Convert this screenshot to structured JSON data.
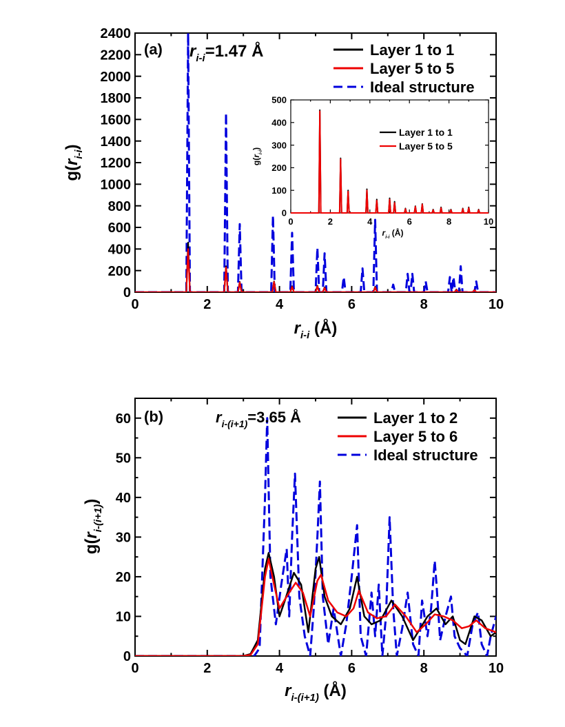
{
  "chart_data": [
    {
      "type": "line",
      "panel_label": "(a)",
      "annotation": {
        "prefix": "r",
        "sub": "i-i",
        "suffix": "=1.47 Å"
      },
      "xlabel": {
        "prefix": "r",
        "sub": "i-i",
        "suffix": " (Å)"
      },
      "ylabel": {
        "prefix": "g(r",
        "sub": "i-i",
        "suffix": ")"
      },
      "xlim": [
        0,
        10
      ],
      "ylim": [
        0,
        2400
      ],
      "xticks": [
        "0",
        "2",
        "4",
        "6",
        "8",
        "10"
      ],
      "yticks": [
        "0",
        "200",
        "400",
        "600",
        "800",
        "1000",
        "1200",
        "1400",
        "1600",
        "1800",
        "2000",
        "2200",
        "2400"
      ],
      "legend_position": "top-right",
      "colors": {
        "layer_a": "#000000",
        "layer_b": "#ee0000",
        "ideal": "#0000dd"
      },
      "series": [
        {
          "name": "Layer 1 to 1",
          "color": "#000000",
          "style": "solid",
          "peaks": [
            [
              1.47,
              460
            ],
            [
              2.52,
              240
            ],
            [
              2.9,
              95
            ],
            [
              3.85,
              100
            ],
            [
              4.35,
              55
            ],
            [
              5.05,
              60
            ],
            [
              5.25,
              45
            ],
            [
              6.65,
              50
            ],
            [
              8.9,
              25
            ],
            [
              9.4,
              20
            ]
          ]
        },
        {
          "name": "Layer 5 to 5",
          "color": "#ee0000",
          "style": "solid",
          "peaks": [
            [
              1.47,
              400
            ],
            [
              2.52,
              230
            ],
            [
              2.9,
              90
            ],
            [
              3.85,
              95
            ],
            [
              4.35,
              50
            ],
            [
              5.05,
              55
            ],
            [
              5.25,
              40
            ],
            [
              6.65,
              45
            ],
            [
              8.9,
              22
            ],
            [
              9.4,
              18
            ]
          ]
        },
        {
          "name": "Ideal structure",
          "color": "#0000dd",
          "style": "dashed",
          "peaks": [
            [
              1.47,
              2400
            ],
            [
              2.52,
              1660
            ],
            [
              2.9,
              630
            ],
            [
              3.82,
              710
            ],
            [
              4.35,
              550
            ],
            [
              5.05,
              410
            ],
            [
              5.25,
              360
            ],
            [
              5.78,
              140
            ],
            [
              6.3,
              220
            ],
            [
              6.65,
              670
            ],
            [
              7.15,
              70
            ],
            [
              7.55,
              170
            ],
            [
              7.68,
              170
            ],
            [
              8.05,
              100
            ],
            [
              8.72,
              140
            ],
            [
              8.82,
              140
            ],
            [
              9.02,
              240
            ],
            [
              9.45,
              100
            ]
          ]
        }
      ],
      "inset": {
        "xlabel": {
          "prefix": "r",
          "sub": "i-i",
          "suffix": " (Å)"
        },
        "ylabel": {
          "prefix": "g(r",
          "sub": "i-i",
          "suffix": ")"
        },
        "xlim": [
          0,
          10
        ],
        "ylim": [
          0,
          500
        ],
        "xticks": [
          "0",
          "2",
          "4",
          "6",
          "8",
          "10"
        ],
        "yticks": [
          "0",
          "100",
          "200",
          "300",
          "400",
          "500"
        ],
        "series": [
          {
            "name": "Layer 1 to 1",
            "color": "#000000",
            "peaks": [
              [
                1.47,
                455
              ],
              [
                2.52,
                242
              ],
              [
                2.9,
                100
              ],
              [
                3.85,
                105
              ],
              [
                4.35,
                60
              ],
              [
                5.0,
                65
              ],
              [
                5.25,
                50
              ],
              [
                5.8,
                20
              ],
              [
                6.3,
                30
              ],
              [
                6.65,
                40
              ],
              [
                7.2,
                15
              ],
              [
                7.6,
                25
              ],
              [
                8.1,
                15
              ],
              [
                8.7,
                20
              ],
              [
                9.0,
                25
              ],
              [
                9.5,
                15
              ]
            ]
          },
          {
            "name": "Layer 5 to 5",
            "color": "#ee0000",
            "peaks": [
              [
                1.47,
                450
              ],
              [
                2.52,
                238
              ],
              [
                2.9,
                95
              ],
              [
                3.85,
                100
              ],
              [
                4.35,
                55
              ],
              [
                5.0,
                60
              ],
              [
                5.25,
                45
              ],
              [
                5.8,
                18
              ],
              [
                6.3,
                28
              ],
              [
                6.65,
                38
              ],
              [
                7.2,
                13
              ],
              [
                7.6,
                22
              ],
              [
                8.1,
                13
              ],
              [
                8.7,
                18
              ],
              [
                9.0,
                22
              ],
              [
                9.5,
                13
              ]
            ]
          }
        ]
      }
    },
    {
      "type": "line",
      "panel_label": "(b)",
      "annotation": {
        "prefix": "r",
        "sub": "i-(i+1)",
        "suffix": "=3.65 Å"
      },
      "xlabel": {
        "prefix": "r",
        "sub": "i-(i+1)",
        "suffix": " (Å)"
      },
      "ylabel": {
        "prefix": "g(r",
        "sub": "i-(i+1)",
        "suffix": ")"
      },
      "xlim": [
        0,
        10
      ],
      "ylim": [
        0,
        65
      ],
      "xticks": [
        "0",
        "2",
        "4",
        "6",
        "8",
        "10"
      ],
      "yticks": [
        "0",
        "10",
        "20",
        "30",
        "40",
        "50",
        "60"
      ],
      "legend_position": "top-right",
      "series": [
        {
          "name": "Layer 1 to 2",
          "color": "#000000",
          "style": "solid",
          "x": [
            0,
            3.0,
            3.2,
            3.4,
            3.6,
            3.7,
            3.85,
            4.0,
            4.15,
            4.4,
            4.6,
            4.8,
            5.0,
            5.1,
            5.25,
            5.45,
            5.7,
            5.95,
            6.15,
            6.35,
            6.55,
            6.8,
            7.1,
            7.4,
            7.7,
            7.9,
            8.1,
            8.35,
            8.6,
            8.8,
            9.0,
            9.15,
            9.4,
            9.6,
            9.85,
            10.0
          ],
          "y": [
            0,
            0,
            0.5,
            4,
            22,
            26,
            20,
            10,
            14,
            21,
            18,
            6,
            22,
            25,
            15,
            10,
            8,
            12,
            20,
            10,
            8,
            9,
            14,
            10,
            4,
            7,
            10,
            12,
            8,
            10,
            4,
            3,
            10,
            9,
            5,
            6
          ]
        },
        {
          "name": "Layer 5 to 6",
          "color": "#ee0000",
          "style": "solid",
          "x": [
            0,
            3.0,
            3.2,
            3.4,
            3.6,
            3.7,
            3.85,
            4.0,
            4.2,
            4.45,
            4.65,
            4.85,
            5.05,
            5.15,
            5.35,
            5.6,
            5.85,
            6.05,
            6.2,
            6.45,
            6.7,
            6.95,
            7.2,
            7.5,
            7.8,
            8.05,
            8.3,
            8.55,
            8.8,
            9.05,
            9.25,
            9.45,
            9.7,
            10.0
          ],
          "y": [
            0,
            0,
            0.3,
            3,
            20,
            24.5,
            18,
            12,
            15,
            18.5,
            16,
            10,
            19,
            20.5,
            14,
            11,
            10,
            12,
            16.5,
            11,
            9.5,
            10,
            13,
            10,
            6,
            8,
            10.5,
            10,
            9,
            7,
            7.5,
            9,
            7,
            6
          ]
        },
        {
          "name": "Ideal structure",
          "color": "#0000dd",
          "style": "dashed",
          "x": [
            0,
            3.3,
            3.45,
            3.6,
            3.66,
            3.75,
            3.9,
            4.05,
            4.2,
            4.27,
            4.35,
            4.43,
            4.55,
            4.7,
            4.85,
            4.95,
            5.05,
            5.12,
            5.2,
            5.35,
            5.5,
            5.7,
            5.85,
            6.0,
            6.15,
            6.25,
            6.4,
            6.55,
            6.65,
            6.75,
            6.85,
            6.95,
            7.05,
            7.15,
            7.25,
            7.4,
            7.55,
            7.7,
            7.85,
            7.95,
            8.1,
            8.2,
            8.3,
            8.35,
            8.45,
            8.6,
            8.75,
            8.85,
            9.0,
            9.2,
            9.35,
            9.5,
            9.6,
            9.75,
            9.85,
            10.0
          ],
          "y": [
            0,
            0,
            2,
            40,
            60,
            20,
            8,
            18,
            27,
            10,
            30,
            46,
            15,
            5,
            0,
            12,
            30,
            44,
            15,
            3,
            12,
            0,
            8,
            20,
            33,
            5,
            0,
            16,
            5,
            18,
            0,
            10,
            35,
            12,
            0,
            7,
            16,
            3,
            0,
            14,
            5,
            12,
            24,
            18,
            4,
            10,
            15,
            5,
            2,
            0,
            8,
            11,
            3,
            0,
            5,
            10
          ]
        }
      ]
    }
  ]
}
